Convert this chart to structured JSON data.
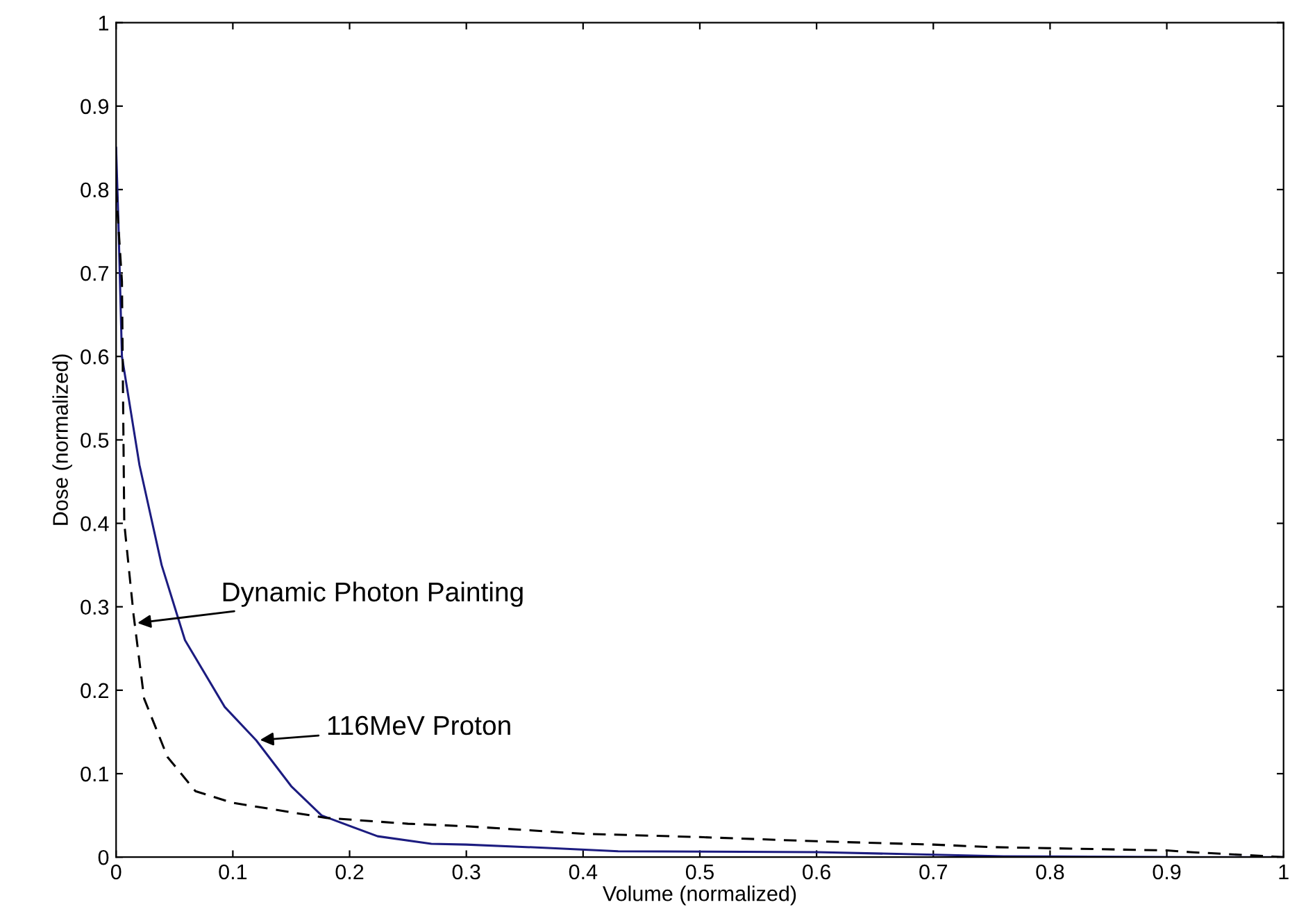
{
  "chart_data": {
    "type": "line",
    "xlabel": "Volume (normalized)",
    "ylabel": "Dose (normalized)",
    "xlim": [
      0,
      1
    ],
    "ylim": [
      0,
      1
    ],
    "xticks": [
      0,
      0.1,
      0.2,
      0.3,
      0.4,
      0.5,
      0.6,
      0.7,
      0.8,
      0.9,
      1
    ],
    "yticks": [
      0,
      0.1,
      0.2,
      0.3,
      0.4,
      0.5,
      0.6,
      0.7,
      0.8,
      0.9,
      1
    ],
    "grid": false,
    "legend": false,
    "series": [
      {
        "color": "#1c1c80",
        "line_style": "solid",
        "x": [
          0,
          0.002,
          0.005,
          0.02,
          0.039,
          0.059,
          0.093,
          0.12,
          0.15,
          0.176,
          0.224,
          0.27,
          0.3,
          0.37,
          0.43,
          0.6,
          0.76,
          0.92,
          1
        ],
        "values": [
          0.85,
          0.76,
          0.6,
          0.47,
          0.35,
          0.26,
          0.18,
          0.14,
          0.085,
          0.05,
          0.025,
          0.016,
          0.015,
          0.011,
          0.007,
          0.006,
          0.001,
          0,
          0
        ]
      },
      {
        "color": "#000000",
        "line_style": "dashed",
        "x": [
          0,
          0.005,
          0.007,
          0.015,
          0.024,
          0.044,
          0.068,
          0.1,
          0.18,
          0.25,
          0.3,
          0.4,
          0.5,
          0.6,
          0.7,
          0.75,
          0.9,
          0.92,
          1
        ],
        "values": [
          0.8,
          0.69,
          0.4,
          0.29,
          0.19,
          0.12,
          0.079,
          0.065,
          0.047,
          0.04,
          0.037,
          0.028,
          0.024,
          0.019,
          0.015,
          0.012,
          0.008,
          0.006,
          0
        ]
      }
    ],
    "annotations": [
      {
        "text": "Dynamic Photon Painting",
        "x": 0.015,
        "y": 0.28
      },
      {
        "text": "116MeV Proton",
        "x": 0.12,
        "y": 0.14
      }
    ]
  }
}
